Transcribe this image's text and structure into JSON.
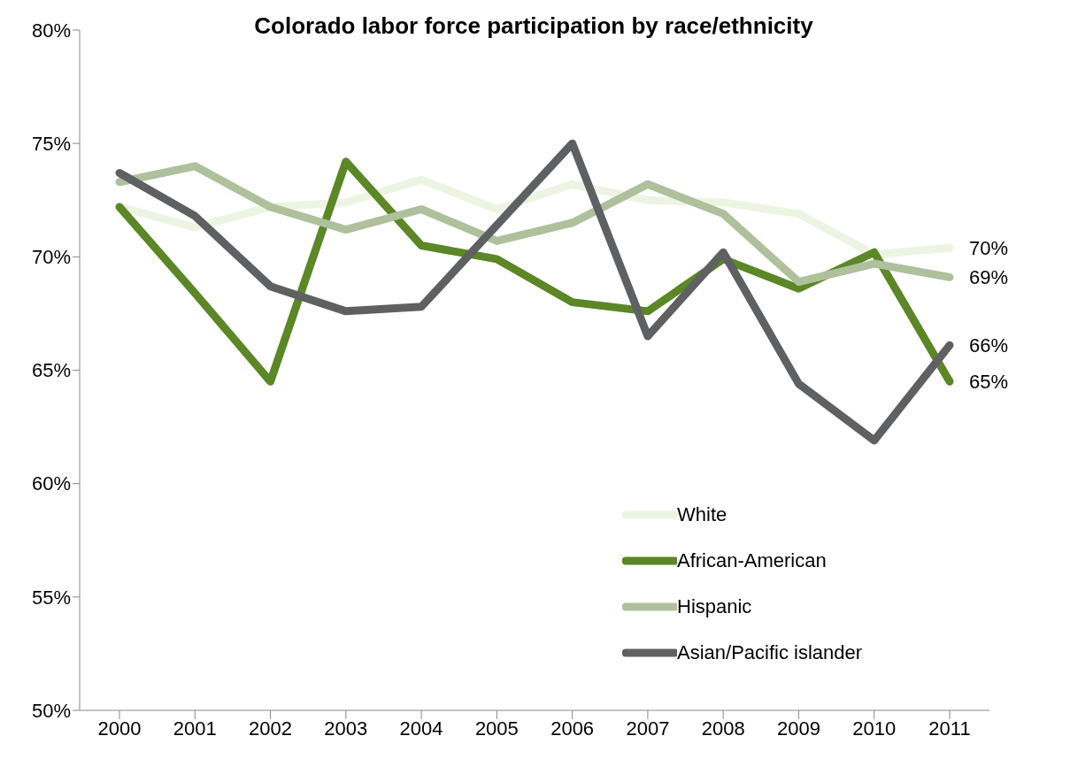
{
  "chart_data": {
    "type": "line",
    "title": "Colorado labor force participation by race/ethnicity",
    "categories": [
      "2000",
      "2001",
      "2002",
      "2003",
      "2004",
      "2005",
      "2006",
      "2007",
      "2008",
      "2009",
      "2010",
      "2011"
    ],
    "series": [
      {
        "name": "White",
        "color": "#eef4e2",
        "values": [
          72.2,
          71.3,
          72.2,
          72.4,
          73.4,
          72.1,
          73.2,
          72.5,
          72.4,
          71.9,
          70.1,
          70.4
        ],
        "value_labels": [
          null,
          null,
          null,
          null,
          null,
          null,
          null,
          null,
          null,
          null,
          null,
          "70%"
        ]
      },
      {
        "name": "African-American",
        "color": "#5b8726",
        "values": [
          72.2,
          68.4,
          64.5,
          74.2,
          70.5,
          69.9,
          68.0,
          67.6,
          69.9,
          68.6,
          70.2,
          64.5
        ],
        "value_labels": [
          null,
          null,
          null,
          null,
          null,
          null,
          null,
          null,
          null,
          null,
          null,
          "65%"
        ]
      },
      {
        "name": "Hispanic",
        "color": "#afc09d",
        "values": [
          73.3,
          74.0,
          72.2,
          71.2,
          72.1,
          70.7,
          71.5,
          73.2,
          71.9,
          68.9,
          69.7,
          69.1
        ],
        "value_labels": [
          null,
          null,
          null,
          null,
          null,
          null,
          null,
          null,
          null,
          null,
          null,
          "69%"
        ]
      },
      {
        "name": "Asian/Pacific islander",
        "color": "#5f6062",
        "values": [
          73.7,
          71.8,
          68.7,
          67.6,
          67.8,
          71.4,
          75.0,
          66.5,
          70.2,
          64.4,
          61.9,
          66.1
        ],
        "value_labels": [
          null,
          null,
          null,
          null,
          null,
          null,
          null,
          null,
          null,
          null,
          null,
          "66%"
        ]
      }
    ],
    "ylim": [
      50,
      80
    ],
    "yticks": [
      {
        "value": 50,
        "label": "50%"
      },
      {
        "value": 55,
        "label": "55%"
      },
      {
        "value": 60,
        "label": "60%"
      },
      {
        "value": 65,
        "label": "65%"
      },
      {
        "value": 70,
        "label": "70%"
      },
      {
        "value": 75,
        "label": "75%"
      },
      {
        "value": 80,
        "label": "80%"
      }
    ],
    "grid": false,
    "legend": "bottom right",
    "marker": "none",
    "line_style": "solid"
  }
}
